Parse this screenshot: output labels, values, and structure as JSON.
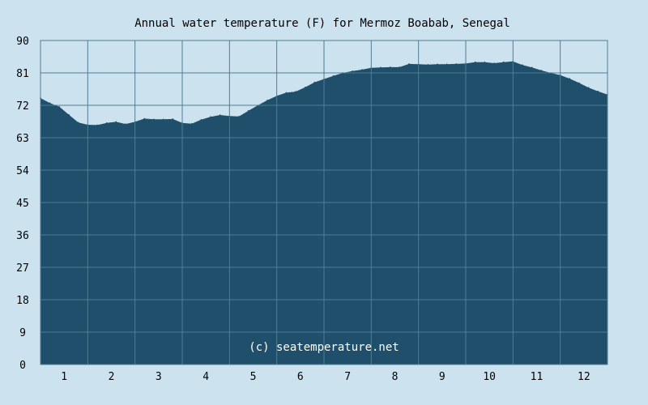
{
  "chart_data": {
    "type": "area",
    "title": "Annual water temperature (F) for Mermoz Boabab, Senegal",
    "watermark": "(c) seatemperature.net",
    "xlabel": "",
    "ylabel": "",
    "x_tick_labels": [
      "1",
      "2",
      "3",
      "4",
      "5",
      "6",
      "7",
      "8",
      "9",
      "10",
      "11",
      "12"
    ],
    "y_tick_labels": [
      "0",
      "9",
      "18",
      "27",
      "36",
      "45",
      "54",
      "63",
      "72",
      "81",
      "90"
    ],
    "ylim": [
      0,
      90
    ],
    "xlim": [
      0.5,
      12.5
    ],
    "grid": true,
    "colors": {
      "background": "#cce3ef",
      "area_fill": "#1f4f6a",
      "grid_line": "#4f7d95",
      "plot_border": "#4f7d95"
    },
    "series": [
      {
        "x": [
          0.5,
          0.7,
          0.9,
          1.1,
          1.3,
          1.5,
          1.7,
          1.9,
          2.1,
          2.3,
          2.5,
          2.7,
          2.9,
          3.1,
          3.3,
          3.5,
          3.7,
          3.9,
          4.1,
          4.3,
          4.5,
          4.7,
          4.9,
          5.1,
          5.3,
          5.5,
          5.7,
          5.9,
          6.1,
          6.3,
          6.5,
          6.7,
          6.9,
          7.1,
          7.3,
          7.5,
          7.7,
          7.9,
          8.1,
          8.3,
          8.5,
          8.7,
          8.9,
          9.1,
          9.3,
          9.5,
          9.7,
          9.9,
          10.1,
          10.3,
          10.5,
          10.7,
          10.9,
          11.1,
          11.3,
          11.5,
          11.7,
          11.9,
          12.1,
          12.3,
          12.5
        ],
        "values": [
          74.0,
          72.6,
          71.6,
          69.4,
          67.2,
          66.6,
          66.5,
          67.1,
          67.4,
          66.8,
          67.4,
          68.3,
          68.1,
          68.1,
          68.2,
          67.1,
          66.9,
          68.0,
          68.8,
          69.3,
          69.0,
          68.9,
          70.5,
          72.0,
          73.4,
          74.6,
          75.5,
          75.8,
          77.0,
          78.4,
          79.3,
          80.2,
          81.0,
          81.5,
          81.9,
          82.4,
          82.5,
          82.6,
          82.6,
          83.5,
          83.4,
          83.3,
          83.4,
          83.4,
          83.5,
          83.6,
          84.0,
          84.0,
          83.7,
          84.0,
          84.2,
          83.2,
          82.5,
          81.7,
          81.0,
          80.4,
          79.4,
          78.2,
          76.9,
          75.9,
          75.0
        ]
      }
    ]
  }
}
